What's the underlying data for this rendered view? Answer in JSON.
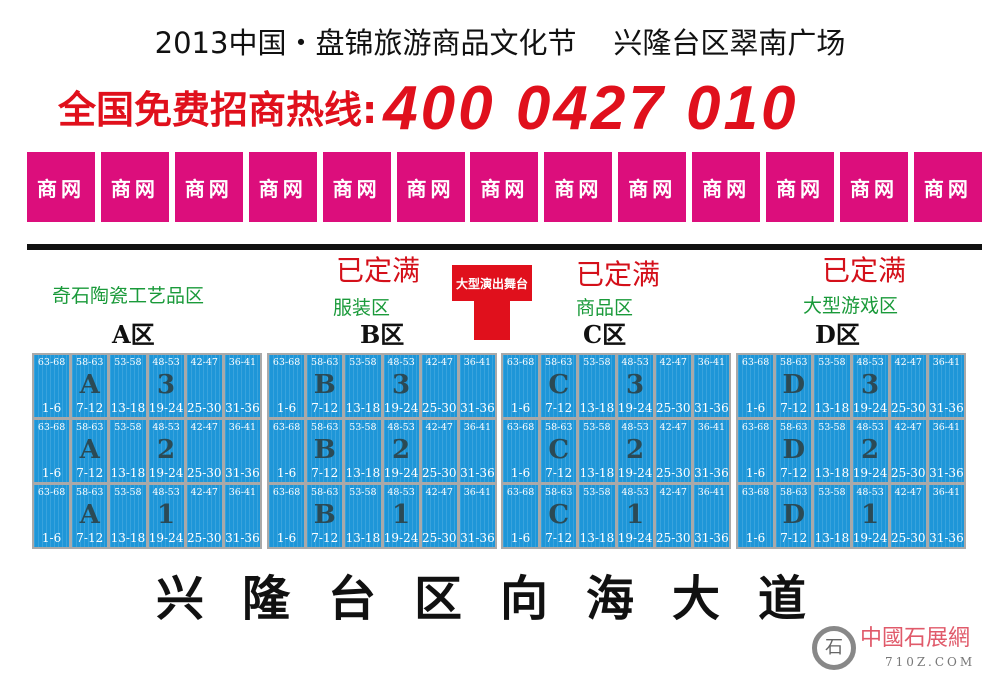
{
  "header": {
    "title": "2013中国・盘锦旅游商品文化节    兴隆台区翠南广场",
    "hotline_label": "全国免费招商热线:",
    "hotline_number": "400 0427 010",
    "sponsor_boxes": [
      "商网",
      "商网",
      "商网",
      "商网",
      "商网",
      "商网",
      "商网",
      "商网",
      "商网",
      "商网",
      "商网",
      "商网",
      "商网"
    ]
  },
  "stage": {
    "label": "大型演出舞台"
  },
  "zones": [
    {
      "letter": "A",
      "label": "A区",
      "name": "奇石陶瓷工艺品区",
      "status": ""
    },
    {
      "letter": "B",
      "label": "B区",
      "name": "服装区",
      "status": "已定满"
    },
    {
      "letter": "C",
      "label": "C区",
      "name": "商品区",
      "status": "已定满"
    },
    {
      "letter": "D",
      "label": "D区",
      "name": "大型游戏区",
      "status": "已定满"
    }
  ],
  "rows": [
    "3",
    "2",
    "1"
  ],
  "booth_columns": [
    {
      "top": "63-68",
      "bottom": "1-6"
    },
    {
      "top": "58-63",
      "bottom": "7-12"
    },
    {
      "top": "53-58",
      "bottom": "13-18"
    },
    {
      "top": "48-53",
      "bottom": "19-24"
    },
    {
      "top": "42-47",
      "bottom": "25-30"
    },
    {
      "top": "36-41",
      "bottom": "31-36"
    }
  ],
  "road": "兴隆台区向海大道",
  "watermark": {
    "text": "中國石展網",
    "url": "710Z.COM",
    "logo": "石"
  },
  "colors": {
    "pink": "#dc0e7c",
    "red": "#e0101c",
    "booth_blue": "#1e96d8",
    "green": "#1a9a3a"
  }
}
